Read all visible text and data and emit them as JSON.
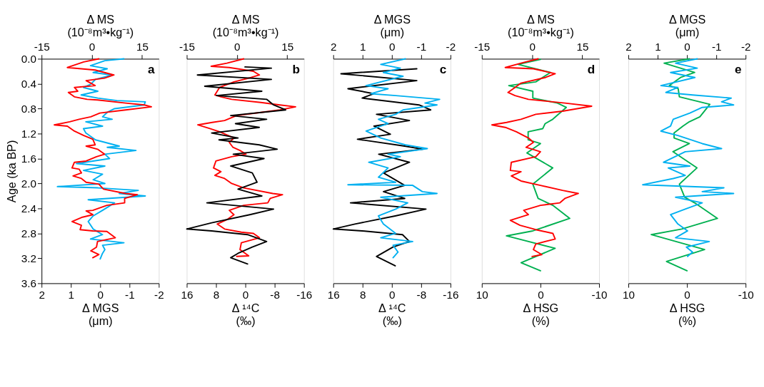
{
  "chart_data": [
    {
      "type": "line",
      "ylabel": "Age (ka BP)",
      "ylim": [
        3.6,
        0
      ],
      "yticks": [
        {
          "value": 0,
          "label": "0.0"
        },
        0.4,
        0.8,
        1.2,
        1.6,
        {
          "value": 2,
          "label": "2.0"
        },
        2.4,
        2.8,
        3.2,
        3.6
      ],
      "xlabel": "Δ MGS\n(μm)",
      "xlim": [
        2,
        -2
      ],
      "xticks": [
        2,
        1,
        0,
        -1,
        -2
      ],
      "x2label": "Δ MS\n(10⁻⁸m³•kg⁻¹)",
      "x2lim": [
        -15,
        20
      ],
      "x2ticks": [
        -15,
        0,
        15
      ],
      "annotations": [
        "a"
      ],
      "series": [
        {
          "color": "#00b0f0",
          "x": [
            -0.81,
            -0.16,
            0.33,
            -0.24,
            0.24,
            -0.41,
            0.16,
            0.33,
            0.57,
            0.08,
            0.65,
            0.08,
            -0.57,
            -1.54,
            -1.5,
            -0.49,
            -0.24,
            -0.08,
            -0.41,
            0.49,
            -0.08,
            0.57,
            0.49,
            0.16,
            -0.65,
            -0.24,
            -1.22,
            -0.16,
            -0.32,
            0.81,
            -0.16,
            0.57,
            -0.08,
            0.24,
            -0.16,
            1.46,
            0.08,
            -1.3,
            -0.65,
            -1.54,
            0.41,
            -0.49,
            -0.08,
            0.24,
            0.41,
            0.24,
            -0.08,
            0.33,
            -0.81,
            -0.08,
            -0.16,
            -0.08,
            0.0
          ],
          "values": [
            0.0,
            0.03,
            0.11,
            0.16,
            0.22,
            0.26,
            0.33,
            0.41,
            0.46,
            0.52,
            0.58,
            0.63,
            0.67,
            0.69,
            0.74,
            0.8,
            0.86,
            0.93,
            0.97,
            1.01,
            1.08,
            1.12,
            1.19,
            1.3,
            1.4,
            1.42,
            1.47,
            1.53,
            1.6,
            1.68,
            1.72,
            1.79,
            1.85,
            1.94,
            2.0,
            2.05,
            2.07,
            2.11,
            2.16,
            2.2,
            2.26,
            2.31,
            2.43,
            2.52,
            2.61,
            2.73,
            2.82,
            2.89,
            2.95,
            2.99,
            3.06,
            3.12,
            3.21
          ]
        },
        {
          "color": "#ff0000",
          "axis": "x2",
          "x": [
            2.1,
            -2.4,
            -7.3,
            1.0,
            6.6,
            3.8,
            -1.7,
            1.0,
            -5.2,
            -4.2,
            -7.0,
            -5.2,
            -1.4,
            1.7,
            10.1,
            15.7,
            17.8,
            10.1,
            2.4,
            -0.3,
            -3.8,
            -6.6,
            -11.2,
            -7.3,
            -5.2,
            -2.4,
            0.3,
            1.0,
            -1.7,
            1.7,
            3.8,
            1.4,
            -1.7,
            -5.2,
            -5.9,
            -3.8,
            -3.1,
            -5.6,
            -3.1,
            -1.7,
            2.1,
            3.5,
            10.1,
            13.6,
            9.8,
            9.8,
            4.5,
            0.3,
            -1.7,
            0.3,
            -2.8,
            -5.9,
            -3.1,
            -3.5,
            0.3,
            4.5,
            7.0,
            1.7,
            1.4,
            -0.3,
            2.1,
            0.3
          ],
          "values": [
            0.0,
            0.05,
            0.14,
            0.18,
            0.26,
            0.31,
            0.35,
            0.43,
            0.46,
            0.52,
            0.54,
            0.61,
            0.65,
            0.66,
            0.71,
            0.74,
            0.77,
            0.82,
            0.87,
            0.93,
            0.97,
            1.01,
            1.06,
            1.08,
            1.16,
            1.23,
            1.29,
            1.38,
            1.4,
            1.45,
            1.53,
            1.57,
            1.64,
            1.66,
            1.75,
            1.77,
            1.83,
            1.88,
            1.92,
            1.98,
            2.01,
            2.09,
            2.16,
            2.18,
            2.24,
            2.31,
            2.35,
            2.43,
            2.44,
            2.5,
            2.54,
            2.61,
            2.67,
            2.74,
            2.76,
            2.77,
            2.87,
            2.93,
            3.02,
            3.08,
            3.14,
            3.19
          ]
        }
      ]
    },
    {
      "type": "line",
      "ylim": [
        3.6,
        0
      ],
      "tick_labels": "x",
      "xlabel": "Δ ¹⁴C\n(‰)",
      "xlim": [
        16,
        -16
      ],
      "xticks": [
        16,
        8,
        0,
        -8,
        -16
      ],
      "x2label": "Δ MS\n(10⁻⁸m³•kg⁻¹)",
      "x2lim": [
        -15,
        20
      ],
      "x2ticks": [
        -15,
        0,
        15
      ],
      "annotations": [
        "b"
      ],
      "series": [
        {
          "color": "#ff0000",
          "axis": "x2",
          "x": [
            2.0,
            -3.0,
            -7.7,
            -2.3,
            4.9,
            6.7,
            4.2,
            -0.9,
            -5.2,
            -6.6,
            -4.8,
            -1.6,
            7.1,
            12.8,
            17.5,
            12.8,
            7.1,
            -0.1,
            -3.7,
            -7.4,
            -11.7,
            -8.1,
            -5.2,
            -0.9,
            -2.3,
            -1.2,
            0.9,
            2.7,
            -1.6,
            -6.3,
            -7.0,
            -4.8,
            -6.6,
            -3.7,
            -1.6,
            2.0,
            10.7,
            13.6,
            9.9,
            9.2,
            2.0,
            -2.3,
            -0.9,
            -3.0,
            -5.9,
            -3.7,
            1.3,
            4.9,
            6.7,
            1.3,
            0.9,
            3.5,
            -0.1
          ],
          "values": [
            0.0,
            0.07,
            0.12,
            0.14,
            0.2,
            0.26,
            0.3,
            0.37,
            0.46,
            0.58,
            0.61,
            0.65,
            0.7,
            0.74,
            0.77,
            0.82,
            0.86,
            0.91,
            0.99,
            1.02,
            1.06,
            1.12,
            1.17,
            1.27,
            1.34,
            1.42,
            1.47,
            1.53,
            1.57,
            1.64,
            1.75,
            1.81,
            1.87,
            1.92,
            2.0,
            2.07,
            2.16,
            2.18,
            2.24,
            2.31,
            2.35,
            2.43,
            2.5,
            2.58,
            2.65,
            2.73,
            2.78,
            2.8,
            2.87,
            2.95,
            3.06,
            3.16,
            3.17
          ]
        },
        {
          "color": "#000000",
          "x": [
            0.1,
            -7.1,
            13.1,
            -7.1,
            11.1,
            -4.5,
            7.9,
            -5.8,
            -7.7,
            -11.0,
            4.0,
            -5.8,
            2.7,
            -3.8,
            9.2,
            2.0,
            7.2,
            -3.8,
            -8.7,
            3.3,
            -5.1,
            4.0,
            -1.9,
            -3.2,
            2.0,
            -4.5,
            10.5,
            -7.7,
            -1.2,
            9.2,
            16.0,
            9.2,
            -0.6,
            -5.8,
            -1.9,
            2.0,
            4.0,
            -0.6
          ],
          "values": [
            0.13,
            0.15,
            0.26,
            0.33,
            0.44,
            0.52,
            0.59,
            0.65,
            0.74,
            0.82,
            0.91,
            0.97,
            1.04,
            1.1,
            1.19,
            1.27,
            1.3,
            1.38,
            1.45,
            1.53,
            1.6,
            1.72,
            1.83,
            1.98,
            2.09,
            2.2,
            2.31,
            2.41,
            2.5,
            2.63,
            2.73,
            2.76,
            2.82,
            2.93,
            3.02,
            3.12,
            3.19,
            3.29
          ]
        }
      ]
    },
    {
      "type": "line",
      "ylim": [
        3.6,
        0
      ],
      "tick_labels": "x",
      "xlabel": "Δ ¹⁴C\n(‰)",
      "xlim": [
        16,
        -16
      ],
      "xticks": [
        16,
        8,
        0,
        -8,
        -16
      ],
      "x2label": "Δ MGS\n(μm)",
      "x2lim": [
        2,
        -2
      ],
      "x2ticks": [
        2,
        1,
        0,
        -1,
        -2
      ],
      "annotations": [
        "c"
      ],
      "series": [
        {
          "color": "#000000",
          "x": [
            -6.8,
            13.9,
            -6.8,
            12.0,
            4.9,
            8.1,
            -7.4,
            -10.6,
            4.2,
            -4.8,
            4.9,
            0.4,
            9.4,
            -3.5,
            -8.4,
            3.6,
            -4.8,
            2.3,
            -3.5,
            2.3,
            -3.5,
            11.3,
            -9.3,
            -0.9,
            10.1,
            16.0,
            8.1,
            -2.9,
            -4.8,
            -0.3,
            4.2,
            -0.9
          ],
          "values": [
            0.16,
            0.24,
            0.35,
            0.48,
            0.56,
            0.63,
            0.74,
            0.82,
            0.89,
            0.99,
            1.08,
            1.21,
            1.29,
            1.4,
            1.45,
            1.53,
            1.66,
            1.83,
            2.03,
            2.13,
            2.24,
            2.31,
            2.41,
            2.52,
            2.65,
            2.73,
            2.76,
            2.82,
            2.93,
            3.02,
            3.17,
            3.32
          ]
        },
        {
          "color": "#00b0f0",
          "axis": "x2",
          "x": [
            -0.46,
            0.38,
            -0.29,
            0.29,
            -0.38,
            0.88,
            0.13,
            0.71,
            -0.13,
            -1.63,
            -1.13,
            -1.54,
            -0.38,
            -0.13,
            0.46,
            0.13,
            0.88,
            0.38,
            -0.46,
            -1.21,
            0.13,
            -0.29,
            0.79,
            0.13,
            0.46,
            -0.13,
            1.5,
            -0.71,
            -1.04,
            -1.54,
            0.38,
            -0.54,
            -0.13,
            0.46,
            0.29,
            -0.13,
            0.38,
            -0.71,
            -0.04,
            -0.21,
            -0.04
          ],
          "values": [
            0.0,
            0.09,
            0.15,
            0.22,
            0.28,
            0.43,
            0.48,
            0.56,
            0.59,
            0.65,
            0.71,
            0.74,
            0.82,
            0.89,
            0.97,
            1.04,
            1.16,
            1.27,
            1.38,
            1.44,
            1.53,
            1.57,
            1.66,
            1.75,
            1.9,
            1.98,
            2.02,
            2.03,
            2.13,
            2.16,
            2.22,
            2.31,
            2.41,
            2.52,
            2.65,
            2.8,
            2.87,
            2.93,
            2.99,
            3.1,
            3.19
          ]
        }
      ]
    },
    {
      "type": "line",
      "ylim": [
        3.6,
        0
      ],
      "tick_labels": "x",
      "xlabel": "Δ HSG\n(%)",
      "xlim": [
        10,
        -10
      ],
      "xticks": [
        10,
        0,
        -10
      ],
      "x2label": "Δ MS\n(10⁻⁸m³•kg⁻¹)",
      "x2lim": [
        -15,
        20
      ],
      "x2ticks": [
        -15,
        0,
        15
      ],
      "annotations": [
        "d"
      ],
      "series": [
        {
          "color": "#00b050",
          "x": [
            0.0,
            3.8,
            -1.7,
            0.8,
            5.4,
            1.3,
            1.3,
            -2.9,
            -4.4,
            -2.1,
            -0.8,
            -0.4,
            2.1,
            2.1,
            0.0,
            2.3,
            -2.1,
            1.3,
            0.4,
            -2.1,
            -5.0,
            1.3,
            5.8,
            -2.5,
            3.3,
            0.0
          ],
          "values": [
            0.01,
            0.09,
            0.22,
            0.37,
            0.43,
            0.52,
            0.63,
            0.71,
            0.78,
            0.97,
            1.04,
            1.12,
            1.17,
            1.3,
            1.36,
            1.51,
            1.75,
            2.01,
            2.24,
            2.35,
            2.56,
            2.76,
            2.84,
            3.04,
            3.27,
            3.4
          ]
        },
        {
          "color": "#ff0000",
          "axis": "x2",
          "x": [
            1.8,
            -3.3,
            -8.0,
            0.4,
            6.9,
            4.0,
            -3.3,
            -5.1,
            -7.2,
            -5.1,
            -1.1,
            9.8,
            17.8,
            9.1,
            1.1,
            -3.3,
            -7.6,
            -12.0,
            -8.0,
            -4.7,
            -1.1,
            0.4,
            -1.8,
            2.5,
            1.1,
            -6.2,
            -6.5,
            -3.3,
            -6.2,
            -3.3,
            2.5,
            9.1,
            13.8,
            9.8,
            8.3,
            2.5,
            -2.5,
            -1.1,
            -6.5,
            -3.6,
            1.1,
            6.2,
            6.9,
            1.1,
            0.4,
            2.9,
            0.0
          ],
          "values": [
            0.0,
            0.07,
            0.14,
            0.16,
            0.24,
            0.3,
            0.39,
            0.46,
            0.54,
            0.59,
            0.65,
            0.71,
            0.76,
            0.84,
            0.89,
            0.97,
            1.02,
            1.06,
            1.1,
            1.17,
            1.27,
            1.34,
            1.42,
            1.49,
            1.57,
            1.66,
            1.79,
            1.81,
            1.88,
            1.96,
            2.03,
            2.11,
            2.16,
            2.24,
            2.31,
            2.35,
            2.43,
            2.5,
            2.59,
            2.67,
            2.74,
            2.8,
            2.89,
            2.97,
            3.06,
            3.14,
            3.17
          ]
        }
      ]
    },
    {
      "type": "line",
      "ylim": [
        3.6,
        0
      ],
      "tick_labels": "x",
      "xlabel": "Δ HSG\n(%)",
      "xlim": [
        10,
        -10
      ],
      "xticks": [
        10,
        0,
        -10
      ],
      "x2label": "Δ MGS\n(μm)",
      "x2lim": [
        2,
        -2
      ],
      "x2ticks": [
        2,
        1,
        0,
        -1,
        -2
      ],
      "annotations": [
        "e"
      ],
      "series": [
        {
          "color": "#00b050",
          "x": [
            -0.4,
            3.9,
            -1.3,
            1.1,
            3.0,
            1.5,
            1.3,
            -3.9,
            -2.2,
            -0.4,
            0.7,
            2.2,
            2.2,
            -0.4,
            2.4,
            -1.7,
            1.3,
            0.4,
            -1.3,
            -5.2,
            0.9,
            6.1,
            -3.0,
            3.5,
            0.0
          ],
          "values": [
            0.0,
            0.07,
            0.22,
            0.3,
            0.43,
            0.48,
            0.61,
            0.73,
            0.93,
            1.01,
            1.08,
            1.19,
            1.27,
            1.36,
            1.49,
            1.75,
            2.01,
            2.22,
            2.31,
            2.56,
            2.73,
            2.82,
            3.06,
            3.25,
            3.4
          ]
        },
        {
          "color": "#00b0f0",
          "axis": "x2",
          "x": [
            -0.35,
            0.39,
            -0.35,
            0.56,
            -0.27,
            0.89,
            0.31,
            0.72,
            -0.19,
            -1.51,
            -1.18,
            -1.59,
            -0.52,
            -0.1,
            0.47,
            0.56,
            0.89,
            0.31,
            -0.52,
            -1.18,
            0.06,
            0.8,
            -0.1,
            0.64,
            0.06,
            0.47,
            1.51,
            -1.26,
            -0.52,
            -1.59,
            0.39,
            -0.52,
            0.06,
            0.56,
            0.31,
            -0.02,
            0.39,
            -0.76,
            0.02,
            -0.19,
            -0.02
          ],
          "values": [
            0.0,
            0.07,
            0.15,
            0.22,
            0.3,
            0.43,
            0.46,
            0.54,
            0.58,
            0.63,
            0.69,
            0.74,
            0.78,
            0.87,
            0.97,
            1.08,
            1.16,
            1.23,
            1.36,
            1.44,
            1.49,
            1.66,
            1.72,
            1.75,
            1.87,
            1.92,
            2.02,
            2.07,
            2.13,
            2.16,
            2.22,
            2.31,
            2.41,
            2.5,
            2.65,
            2.76,
            2.87,
            2.93,
            3.02,
            3.1,
            3.17
          ]
        }
      ]
    }
  ]
}
